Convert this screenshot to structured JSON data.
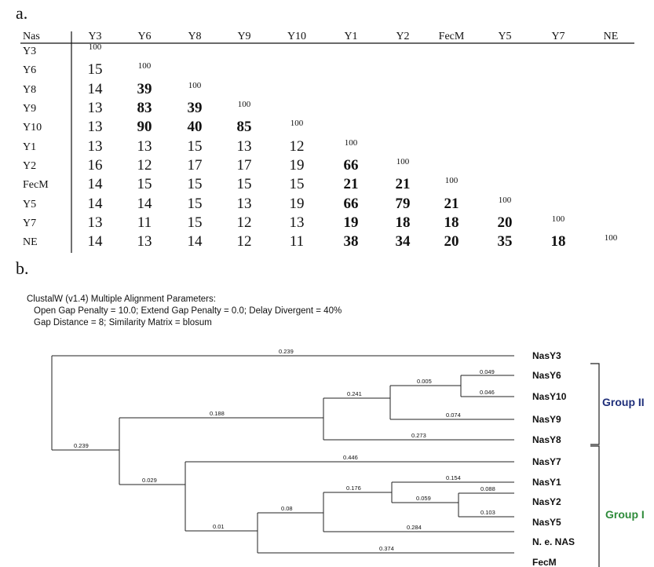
{
  "panel_a": {
    "letter": "a.",
    "corner_label": "Nas",
    "columns": [
      "Y3",
      "Y6",
      "Y8",
      "Y9",
      "Y10",
      "Y1",
      "Y2",
      "FecM",
      "Y5",
      "Y7",
      "NE"
    ],
    "rows": [
      {
        "label": "Y3",
        "values": [
          "100"
        ]
      },
      {
        "label": "Y6",
        "values": [
          "15",
          "100"
        ]
      },
      {
        "label": "Y8",
        "values": [
          "14",
          "39",
          "100"
        ]
      },
      {
        "label": "Y9",
        "values": [
          "13",
          "83",
          "39",
          "100"
        ]
      },
      {
        "label": "Y10",
        "values": [
          "13",
          "90",
          "40",
          "85",
          "100"
        ]
      },
      {
        "label": "Y1",
        "values": [
          "13",
          "13",
          "15",
          "13",
          "12",
          "100"
        ]
      },
      {
        "label": "Y2",
        "values": [
          "16",
          "12",
          "17",
          "17",
          "19",
          "66",
          "100"
        ]
      },
      {
        "label": "FecM",
        "values": [
          "14",
          "15",
          "15",
          "15",
          "15",
          "21",
          "21",
          "100"
        ]
      },
      {
        "label": "Y5",
        "values": [
          "14",
          "14",
          "15",
          "13",
          "19",
          "66",
          "79",
          "21",
          "100"
        ]
      },
      {
        "label": "Y7",
        "values": [
          "13",
          "11",
          "15",
          "12",
          "13",
          "19",
          "18",
          "18",
          "20",
          "100"
        ]
      },
      {
        "label": "NE",
        "values": [
          "14",
          "13",
          "14",
          "12",
          "11",
          "38",
          "34",
          "20",
          "35",
          "18",
          "100"
        ]
      }
    ],
    "group_ii_members": [
      "Y6",
      "Y8",
      "Y9",
      "Y10"
    ],
    "group_i_members": [
      "Y1",
      "Y2",
      "FecM",
      "Y5",
      "Y7",
      "NE"
    ],
    "colors": {
      "group_ii": "#1f2f7a",
      "group_i": "#2e8b3a",
      "default": "#111111"
    }
  },
  "panel_b": {
    "letter": "b.",
    "params_lines": [
      "ClustalW (v1.4) Multiple Alignment Parameters:",
      "Open Gap Penalty = 10.0; Extend Gap Penalty = 0.0; Delay Divergent = 40%",
      "Gap Distance = 8; Similarity Matrix = blosum"
    ],
    "leaves": [
      "NasY3",
      "NasY6",
      "NasY10",
      "NasY9",
      "NasY8",
      "NasY7",
      "NasY1",
      "NasY2",
      "NasY5",
      "N. e. NAS",
      "FecM"
    ],
    "branch_lengths": {
      "NasY3": "0.239",
      "NasY6": "0.049",
      "NasY10": "0.046",
      "Y6_Y10_node": "0.005",
      "NasY9": "0.074",
      "Y6_Y10_Y9_node": "0.241",
      "NasY8": "0.273",
      "group_ii_node": "0.188",
      "ingroup_node": "0.239",
      "NasY7": "0.446",
      "group_i_node": "0.029",
      "NasY1": "0.154",
      "Y1_node": "0.176",
      "NasY2": "0.088",
      "NasY5": "0.103",
      "Y2_Y5_node": "0.059",
      "inner_node": "0.08",
      "NeNAS": "0.284",
      "lower_node": "0.01",
      "FecM": "0.374"
    },
    "groups": {
      "group_ii_label": "Group II",
      "group_i_label": "Group I"
    }
  }
}
